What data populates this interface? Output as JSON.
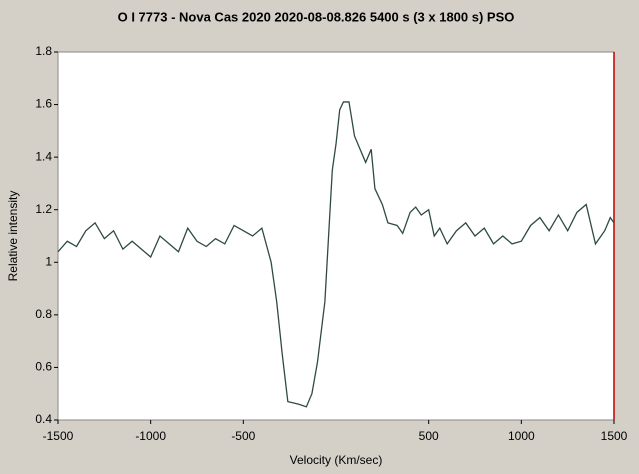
{
  "chart_data": {
    "type": "line",
    "title": "O I 7773 - Nova Cas 2020   2020-08-08.826   5400 s (3 x 1800 s)   PSO",
    "xlabel": "Velocity (Km/sec)",
    "ylabel": "Relative intensity",
    "xlim": [
      -1500,
      1500
    ],
    "xticks": [
      -1500,
      -1000,
      -500,
      500,
      1000,
      1500
    ],
    "ylim": [
      0.4,
      1.8
    ],
    "yticks": [
      0.4,
      0.6,
      0.8,
      1,
      1.2,
      1.4,
      1.6,
      1.8
    ],
    "x": [
      -1500,
      -1450,
      -1400,
      -1350,
      -1300,
      -1250,
      -1200,
      -1150,
      -1100,
      -1050,
      -1000,
      -950,
      -900,
      -850,
      -800,
      -750,
      -700,
      -650,
      -600,
      -550,
      -500,
      -450,
      -400,
      -350,
      -320,
      -290,
      -260,
      -200,
      -160,
      -130,
      -100,
      -60,
      -40,
      -20,
      0,
      20,
      40,
      70,
      100,
      130,
      160,
      190,
      210,
      250,
      280,
      330,
      360,
      400,
      430,
      460,
      500,
      530,
      560,
      600,
      650,
      700,
      750,
      800,
      850,
      900,
      950,
      1000,
      1050,
      1100,
      1150,
      1200,
      1250,
      1300,
      1350,
      1400,
      1450,
      1480,
      1500
    ],
    "series": [
      {
        "name": "O I 7773",
        "color": "#2f4a44",
        "values": [
          1.04,
          1.08,
          1.06,
          1.12,
          1.15,
          1.09,
          1.12,
          1.05,
          1.08,
          1.05,
          1.02,
          1.1,
          1.07,
          1.04,
          1.13,
          1.08,
          1.06,
          1.09,
          1.07,
          1.14,
          1.12,
          1.1,
          1.13,
          1.0,
          0.85,
          0.65,
          0.47,
          0.46,
          0.45,
          0.5,
          0.62,
          0.85,
          1.1,
          1.35,
          1.45,
          1.58,
          1.61,
          1.61,
          1.48,
          1.43,
          1.38,
          1.43,
          1.28,
          1.22,
          1.15,
          1.14,
          1.11,
          1.19,
          1.21,
          1.18,
          1.2,
          1.1,
          1.13,
          1.07,
          1.12,
          1.15,
          1.1,
          1.13,
          1.07,
          1.1,
          1.07,
          1.08,
          1.14,
          1.17,
          1.12,
          1.18,
          1.12,
          1.19,
          1.22,
          1.07,
          1.12,
          1.17,
          1.15
        ]
      }
    ]
  }
}
